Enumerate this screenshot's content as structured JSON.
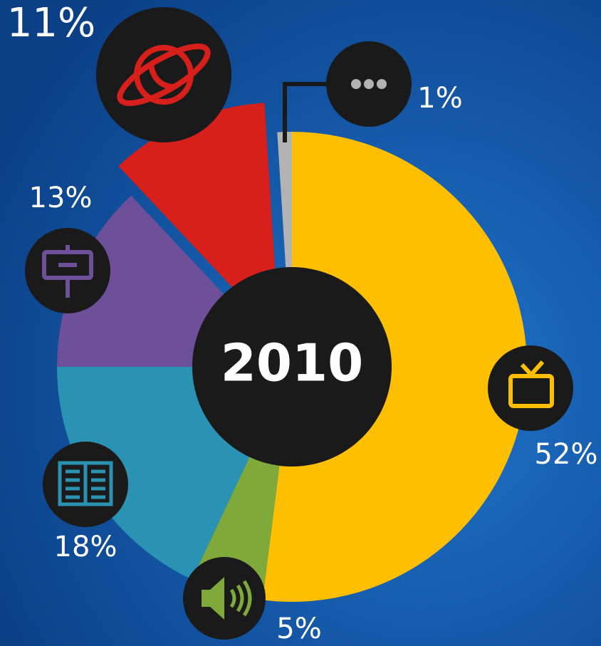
{
  "chart_data": {
    "type": "pie",
    "center_label": "2010",
    "values": [
      52,
      5,
      18,
      13,
      11,
      1
    ],
    "value_labels": [
      "52%",
      "5%",
      "18%",
      "13%",
      "11%",
      "1%"
    ],
    "colors": [
      "#fdbf00",
      "#7fa93a",
      "#2a93b3",
      "#6e4f9a",
      "#d71f1b",
      "#b3b3b3"
    ]
  }
}
